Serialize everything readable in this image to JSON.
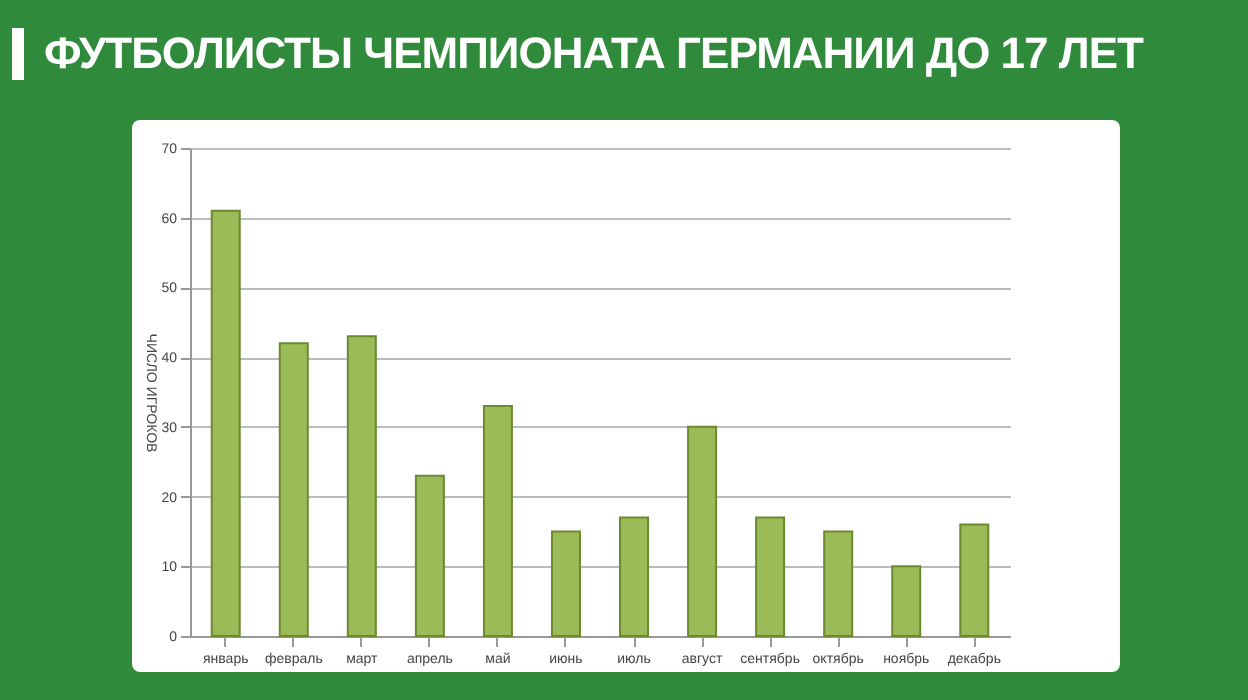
{
  "chart_data": {
    "type": "bar",
    "title": "ФУТБОЛИСТЫ ЧЕМПИОНАТА ГЕРМАНИИ ДО 17 ЛЕТ",
    "ylabel": "ЧИСЛО ИГРОКОВ",
    "categories": [
      "январь",
      "февраль",
      "март",
      "апрель",
      "май",
      "июнь",
      "июль",
      "август",
      "сентябрь",
      "октябрь",
      "ноябрь",
      "декабрь"
    ],
    "values": [
      61,
      42,
      43,
      23,
      33,
      15,
      17,
      30,
      17,
      15,
      10,
      16
    ],
    "color": "#9bbb59",
    "ylim": [
      0,
      70
    ],
    "yticks": [
      0,
      10,
      20,
      30,
      40,
      50,
      60,
      70
    ],
    "grid": "y"
  }
}
